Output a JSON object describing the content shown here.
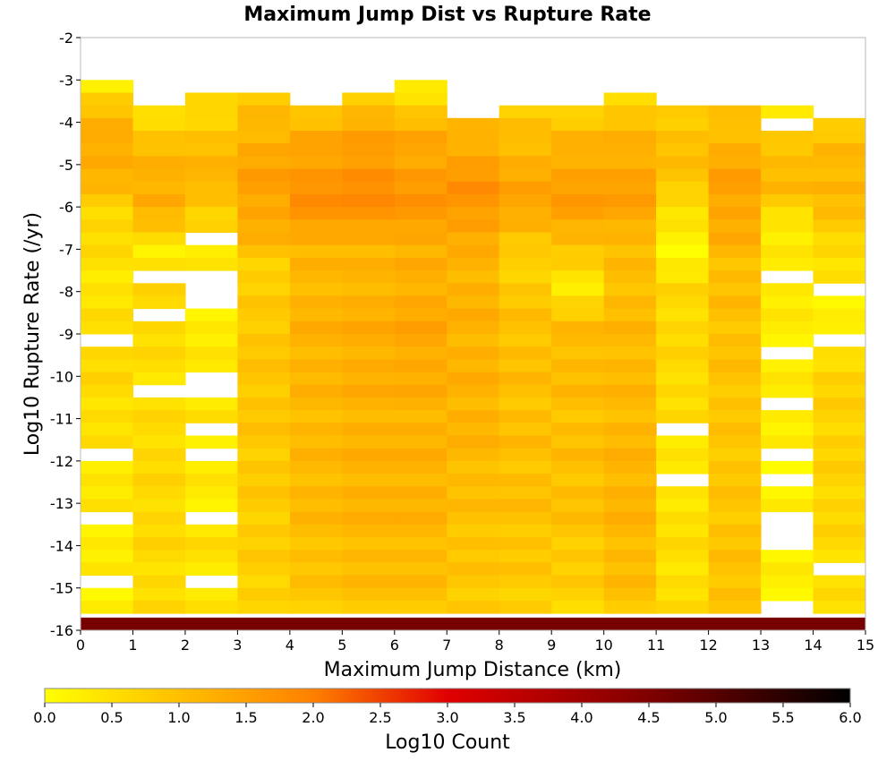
{
  "chart_data": {
    "type": "heatmap",
    "title": "Maximum Jump Dist vs Rupture Rate",
    "xlabel": "Maximum Jump Distance (km)",
    "ylabel": "Log10 Rupture Rate (/yr)",
    "xlim": [
      0,
      15
    ],
    "ylim": [
      -16,
      -2
    ],
    "x_ticks": [
      "0",
      "1",
      "2",
      "3",
      "4",
      "5",
      "6",
      "7",
      "8",
      "9",
      "10",
      "11",
      "12",
      "13",
      "14",
      "15"
    ],
    "y_ticks": [
      "-2",
      "-3",
      "-4",
      "-5",
      "-6",
      "-7",
      "-8",
      "-9",
      "-10",
      "-11",
      "-12",
      "-13",
      "-14",
      "-15",
      "-16"
    ],
    "colorbar": {
      "label": "Log10 Count",
      "range": [
        0.0,
        6.0
      ],
      "ticks": [
        "0.0",
        "0.5",
        "1.0",
        "1.5",
        "2.0",
        "2.5",
        "3.0",
        "3.5",
        "4.0",
        "4.5",
        "5.0",
        "5.5",
        "6.0"
      ],
      "stops": [
        {
          "v": 0.0,
          "color": "#ffff00"
        },
        {
          "v": 2.0,
          "color": "#ff8000"
        },
        {
          "v": 3.0,
          "color": "#e00000"
        },
        {
          "v": 4.5,
          "color": "#800000"
        },
        {
          "v": 6.0,
          "color": "#000000"
        }
      ]
    },
    "bin_width_y": 0.3,
    "bottom_row": {
      "y": -15.85,
      "value": 4.6
    },
    "columns": [
      {
        "x": 0.5,
        "top": -3.0,
        "profile": [
          [
            -3,
            0.2
          ],
          [
            -3.6,
            0.9
          ],
          [
            -4.5,
            1.4
          ],
          [
            -5.3,
            1.2
          ],
          [
            -6.0,
            0.7
          ],
          [
            -7,
            0.5
          ],
          [
            -8,
            0.4
          ],
          [
            -10,
            0.6
          ],
          [
            -12,
            0.4
          ],
          [
            -14,
            0.3
          ],
          [
            -16,
            0.2
          ]
        ],
        "gaps": [
          -9.2,
          -12.0,
          -13.4,
          -14.8
        ]
      },
      {
        "x": 1.5,
        "top": -3.6,
        "profile": [
          [
            -3.6,
            0.4
          ],
          [
            -4.5,
            1.0
          ],
          [
            -5.5,
            1.3
          ],
          [
            -6.0,
            1.3
          ],
          [
            -7,
            0.3
          ],
          [
            -8,
            0.6
          ],
          [
            -10,
            0.5
          ],
          [
            -12,
            0.6
          ],
          [
            -14,
            0.6
          ],
          [
            -16,
            0.5
          ]
        ],
        "gaps": [
          -7.5,
          -8.6,
          -10.3,
          -15.7
        ]
      },
      {
        "x": 2.5,
        "top": -3.3,
        "profile": [
          [
            -3.3,
            0.4
          ],
          [
            -4.5,
            1.0
          ],
          [
            -5.5,
            1.2
          ],
          [
            -6.3,
            0.6
          ],
          [
            -7.6,
            0.3
          ],
          [
            -9,
            0.3
          ],
          [
            -11,
            0.4
          ],
          [
            -13,
            0.3
          ],
          [
            -14,
            0.5
          ],
          [
            -16,
            0.3
          ]
        ],
        "gaps": [
          -6.8,
          -7.5,
          -7.8,
          -8.2,
          -10.0,
          -10.3,
          -11.2,
          -12.0,
          -13.4,
          -14.8
        ]
      },
      {
        "x": 3.5,
        "top": -3.3,
        "profile": [
          [
            -3.3,
            0.8
          ],
          [
            -4.5,
            1.3
          ],
          [
            -5.5,
            1.5
          ],
          [
            -6.5,
            1.3
          ],
          [
            -7.5,
            0.7
          ],
          [
            -9,
            0.9
          ],
          [
            -11,
            0.9
          ],
          [
            -13,
            0.8
          ],
          [
            -16,
            0.7
          ]
        ],
        "gaps": []
      },
      {
        "x": 4.5,
        "top": -3.6,
        "profile": [
          [
            -3.6,
            0.7
          ],
          [
            -4.5,
            1.4
          ],
          [
            -5.5,
            1.7
          ],
          [
            -6.2,
            1.7
          ],
          [
            -7,
            1.1
          ],
          [
            -9,
            1.2
          ],
          [
            -11,
            1.1
          ],
          [
            -13,
            1.1
          ],
          [
            -16,
            0.8
          ]
        ],
        "gaps": []
      },
      {
        "x": 5.5,
        "top": -3.3,
        "profile": [
          [
            -3.3,
            0.8
          ],
          [
            -4.5,
            1.5
          ],
          [
            -5.5,
            1.8
          ],
          [
            -6.2,
            1.7
          ],
          [
            -7,
            1.1
          ],
          [
            -9,
            1.3
          ],
          [
            -11,
            1.2
          ],
          [
            -13,
            1.2
          ],
          [
            -16,
            0.9
          ]
        ],
        "gaps": []
      },
      {
        "x": 6.5,
        "top": -3.0,
        "profile": [
          [
            -3.0,
            0.2
          ],
          [
            -4.3,
            1.3
          ],
          [
            -5.5,
            1.6
          ],
          [
            -6.3,
            1.6
          ],
          [
            -7,
            1.2
          ],
          [
            -9,
            1.4
          ],
          [
            -11,
            1.2
          ],
          [
            -13,
            1.2
          ],
          [
            -16,
            0.9
          ]
        ],
        "gaps": []
      },
      {
        "x": 7.5,
        "top": -3.9,
        "profile": [
          [
            -3.9,
            0.9
          ],
          [
            -4.5,
            1.3
          ],
          [
            -5.5,
            1.7
          ],
          [
            -6.2,
            1.6
          ],
          [
            -7,
            1.2
          ],
          [
            -9,
            1.2
          ],
          [
            -11,
            1.2
          ],
          [
            -13,
            1.0
          ],
          [
            -16,
            0.8
          ]
        ],
        "gaps": []
      },
      {
        "x": 8.5,
        "top": -3.6,
        "profile": [
          [
            -3.6,
            0.7
          ],
          [
            -4.5,
            1.1
          ],
          [
            -5.5,
            1.4
          ],
          [
            -6.2,
            1.4
          ],
          [
            -7,
            0.7
          ],
          [
            -9,
            1.0
          ],
          [
            -11,
            1.0
          ],
          [
            -13,
            1.0
          ],
          [
            -16,
            0.7
          ]
        ],
        "gaps": []
      },
      {
        "x": 9.5,
        "top": -3.6,
        "profile": [
          [
            -3.6,
            0.5
          ],
          [
            -4.5,
            1.2
          ],
          [
            -5.5,
            1.5
          ],
          [
            -6.2,
            1.5
          ],
          [
            -7,
            0.9
          ],
          [
            -7.8,
            0.3
          ],
          [
            -9,
            1.1
          ],
          [
            -11,
            1.0
          ],
          [
            -13,
            1.0
          ],
          [
            -16,
            0.6
          ]
        ],
        "gaps": []
      },
      {
        "x": 10.5,
        "top": -3.3,
        "profile": [
          [
            -3.3,
            0.6
          ],
          [
            -4.5,
            1.2
          ],
          [
            -5.5,
            1.5
          ],
          [
            -6.2,
            1.4
          ],
          [
            -7,
            1.0
          ],
          [
            -9,
            1.1
          ],
          [
            -11,
            1.1
          ],
          [
            -13,
            1.2
          ],
          [
            -16,
            0.9
          ]
        ],
        "gaps": []
      },
      {
        "x": 11.5,
        "top": -3.6,
        "profile": [
          [
            -3.6,
            0.8
          ],
          [
            -4.5,
            1.0
          ],
          [
            -5.5,
            0.9
          ],
          [
            -6.0,
            0.5
          ],
          [
            -7,
            0.1
          ],
          [
            -8,
            0.6
          ],
          [
            -10,
            0.6
          ],
          [
            -12,
            0.4
          ],
          [
            -14,
            0.5
          ],
          [
            -16,
            0.5
          ]
        ],
        "gaps": [
          -11.2,
          -12.5
        ]
      },
      {
        "x": 12.5,
        "top": -3.6,
        "profile": [
          [
            -3.6,
            0.8
          ],
          [
            -4.5,
            1.2
          ],
          [
            -5.5,
            1.5
          ],
          [
            -6.5,
            1.3
          ],
          [
            -7.5,
            1.0
          ],
          [
            -9,
            1.0
          ],
          [
            -11,
            0.9
          ],
          [
            -13,
            0.9
          ],
          [
            -16,
            1.0
          ]
        ],
        "gaps": []
      },
      {
        "x": 13.5,
        "top": -3.6,
        "profile": [
          [
            -3.6,
            0.3
          ],
          [
            -4.5,
            1.0
          ],
          [
            -5.5,
            1.1
          ],
          [
            -6.5,
            0.3
          ],
          [
            -8,
            0.3
          ],
          [
            -10,
            0.3
          ],
          [
            -12,
            0.2
          ],
          [
            -14,
            0.2
          ],
          [
            -16,
            0.3
          ]
        ],
        "gaps": [
          -4.1,
          -7.5,
          -9.4,
          -10.6,
          -11.8,
          -12.5,
          -13.3,
          -13.6,
          -13.9,
          -15.5
        ]
      },
      {
        "x": 14.5,
        "top": -3.9,
        "profile": [
          [
            -3.9,
            0.6
          ],
          [
            -4.5,
            1.0
          ],
          [
            -5.5,
            1.2
          ],
          [
            -6.5,
            0.8
          ],
          [
            -7.5,
            0.4
          ],
          [
            -8.5,
            0.2
          ],
          [
            -10,
            0.7
          ],
          [
            -12,
            0.7
          ],
          [
            -14,
            0.6
          ],
          [
            -16,
            0.4
          ]
        ],
        "gaps": [
          -7.9,
          -9.2,
          -14.6
        ]
      }
    ]
  }
}
